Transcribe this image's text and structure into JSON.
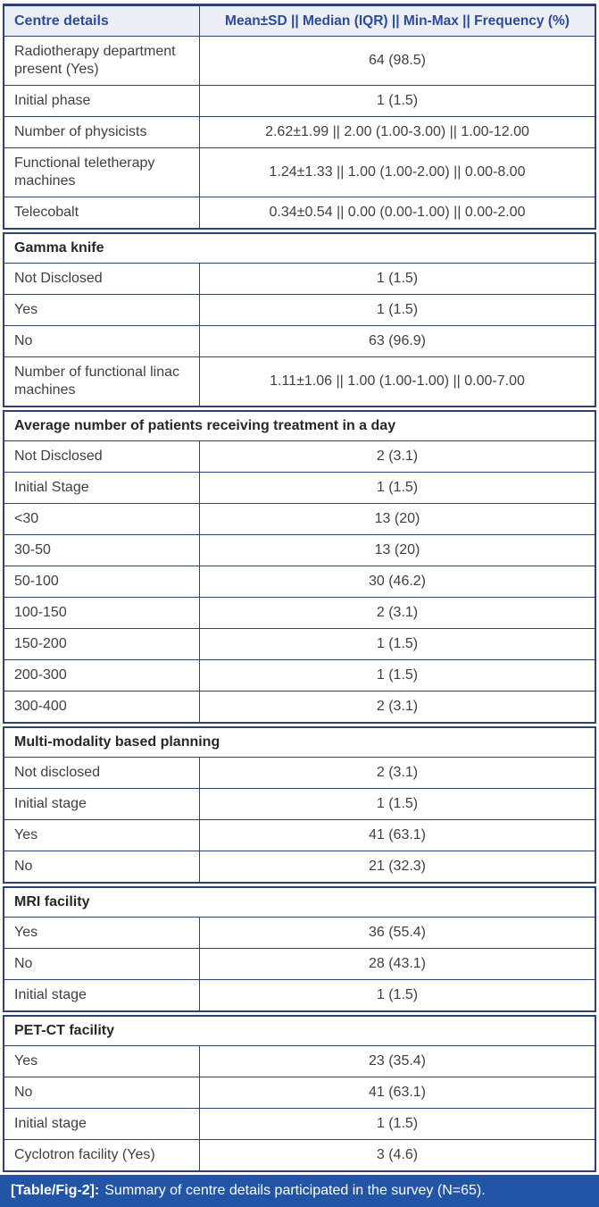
{
  "table": {
    "header": {
      "col1": "Centre details",
      "col2": "Mean±SD || Median (IQR) || Min-Max || Frequency (%)"
    },
    "sections": [
      {
        "title": null,
        "rows": [
          {
            "label": "Radiotherapy department present (Yes)",
            "value": "64 (98.5)",
            "tall": true
          },
          {
            "label": "Initial phase",
            "value": "1 (1.5)"
          },
          {
            "label": "Number of physicists",
            "value": "2.62±1.99 || 2.00 (1.00-3.00) || 1.00-12.00"
          },
          {
            "label": "Functional teletherapy machines",
            "value": "1.24±1.33 || 1.00 (1.00-2.00) || 0.00-8.00",
            "tall": true
          },
          {
            "label": "Telecobalt",
            "value": "0.34±0.54 || 0.00 (0.00-1.00) || 0.00-2.00"
          }
        ]
      },
      {
        "title": "Gamma knife",
        "rows": [
          {
            "label": "Not Disclosed",
            "value": "1 (1.5)"
          },
          {
            "label": "Yes",
            "value": "1 (1.5)"
          },
          {
            "label": "No",
            "value": "63 (96.9)"
          },
          {
            "label": "Number of functional linac machines",
            "value": "1.11±1.06 || 1.00 (1.00-1.00) || 0.00-7.00",
            "tall": true
          }
        ]
      },
      {
        "title": "Average number of patients receiving treatment in a day",
        "rows": [
          {
            "label": "Not Disclosed",
            "value": "2 (3.1)"
          },
          {
            "label": "Initial Stage",
            "value": "1 (1.5)"
          },
          {
            "label": "<30",
            "value": "13 (20)"
          },
          {
            "label": "30-50",
            "value": "13 (20)"
          },
          {
            "label": "50-100",
            "value": "30 (46.2)"
          },
          {
            "label": "100-150",
            "value": "2 (3.1)"
          },
          {
            "label": "150-200",
            "value": "1 (1.5)"
          },
          {
            "label": "200-300",
            "value": "1 (1.5)"
          },
          {
            "label": "300-400",
            "value": "2 (3.1)"
          }
        ]
      },
      {
        "title": "Multi-modality based planning",
        "rows": [
          {
            "label": "Not disclosed",
            "value": "2 (3.1)"
          },
          {
            "label": "Initial stage",
            "value": "1 (1.5)"
          },
          {
            "label": "Yes",
            "value": "41 (63.1)"
          },
          {
            "label": "No",
            "value": "21 (32.3)"
          }
        ]
      },
      {
        "title": "MRI facility",
        "rows": [
          {
            "label": "Yes",
            "value": "36 (55.4)"
          },
          {
            "label": "No",
            "value": "28 (43.1)"
          },
          {
            "label": "Initial stage",
            "value": "1 (1.5)"
          }
        ]
      },
      {
        "title": "PET-CT facility",
        "rows": [
          {
            "label": "Yes",
            "value": "23 (35.4)"
          },
          {
            "label": "No",
            "value": "41 (63.1)"
          },
          {
            "label": "Initial stage",
            "value": "1 (1.5)"
          },
          {
            "label": "Cyclotron facility (Yes)",
            "value": "3 (4.6)"
          }
        ]
      }
    ],
    "caption": {
      "tag": "[Table/Fig-2]:",
      "text": "Summary of centre details participated in the survey (N=65)."
    },
    "colors": {
      "border": "#2f4370",
      "header_bg": "#eceef5",
      "header_text": "#2c4b9d",
      "caption_bg": "#2355a6",
      "caption_text": "#ffffff",
      "body_text": "#3f3f3f"
    }
  }
}
